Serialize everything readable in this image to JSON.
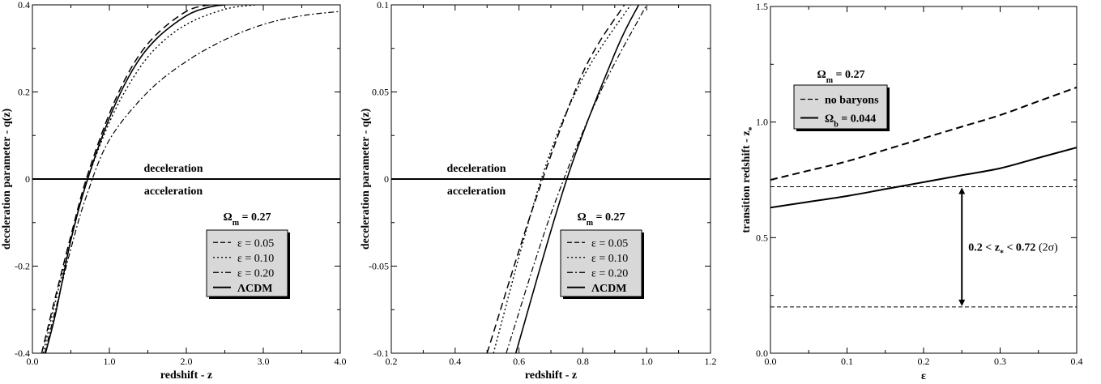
{
  "chart_data": [
    {
      "type": "line",
      "xlabel": "redshift - z",
      "ylabel": "deceleration parameter - q(z)",
      "xlim": [
        0.0,
        4.0
      ],
      "ylim": [
        -0.4,
        0.4
      ],
      "xticks": [
        0.0,
        1.0,
        2.0,
        3.0,
        4.0
      ],
      "xtick_labels": [
        "0.0",
        "1.0",
        "2.0",
        "3.0",
        "4.0"
      ],
      "yticks": [
        -0.4,
        -0.2,
        0.0,
        0.2,
        0.4
      ],
      "ytick_labels": [
        "-0.4",
        "-0.2",
        "0",
        "0.2",
        "0.4"
      ],
      "hline": 0,
      "annotations": [
        "deceleration",
        "acceleration"
      ],
      "legend_title": "Ω_m = 0.27",
      "legend_placement": "bottom-right",
      "series": [
        {
          "name": "ε = 0.05",
          "style": "dashed",
          "x": [
            0.12,
            0.3,
            0.5,
            0.7,
            1.0,
            1.3,
            1.6,
            2.0,
            2.3,
            2.45
          ],
          "y": [
            -0.4,
            -0.27,
            -0.13,
            0.0,
            0.15,
            0.26,
            0.33,
            0.385,
            0.4,
            0.4
          ]
        },
        {
          "name": "ε = 0.10",
          "style": "dotted",
          "x": [
            0.14,
            0.3,
            0.5,
            0.7,
            1.0,
            1.3,
            1.6,
            2.0,
            2.5,
            2.9
          ],
          "y": [
            -0.4,
            -0.28,
            -0.14,
            -0.01,
            0.13,
            0.23,
            0.3,
            0.355,
            0.39,
            0.4
          ]
        },
        {
          "name": "ε = 0.20",
          "style": "dashdot",
          "x": [
            0.16,
            0.3,
            0.5,
            0.7,
            1.0,
            1.5,
            2.0,
            2.5,
            3.0,
            3.5,
            4.0
          ],
          "y": [
            -0.4,
            -0.3,
            -0.16,
            -0.04,
            0.09,
            0.2,
            0.27,
            0.32,
            0.355,
            0.375,
            0.385
          ]
        },
        {
          "name": "ΛCDM",
          "style": "solid",
          "x": [
            0.17,
            0.3,
            0.5,
            0.7,
            1.0,
            1.3,
            1.6,
            2.0,
            2.3,
            2.5
          ],
          "y": [
            -0.4,
            -0.31,
            -0.14,
            -0.01,
            0.14,
            0.25,
            0.32,
            0.375,
            0.395,
            0.4
          ]
        }
      ]
    },
    {
      "type": "line",
      "xlabel": "redshift - z",
      "ylabel": "deceleration parameter - q(z)",
      "xlim": [
        0.2,
        1.2
      ],
      "ylim": [
        -0.1,
        0.1
      ],
      "xticks": [
        0.2,
        0.4,
        0.6,
        0.8,
        1.0,
        1.2
      ],
      "xtick_labels": [
        "0.2",
        "0.4",
        "0.6",
        "0.8",
        "1.0",
        "1.2"
      ],
      "yticks": [
        -0.1,
        -0.05,
        0.0,
        0.05,
        0.1
      ],
      "ytick_labels": [
        "-0.1",
        "-0.05",
        "0",
        "0.05",
        "0.1"
      ],
      "hline": 0,
      "annotations": [
        "deceleration",
        "acceleration"
      ],
      "legend_title": "Ω_m = 0.27",
      "legend_placement": "bottom-right",
      "series": [
        {
          "name": "ε = 0.05",
          "style": "dashed",
          "x": [
            0.5,
            0.65,
            0.8,
            0.93
          ],
          "y": [
            -0.1,
            -0.013,
            0.061,
            0.1
          ]
        },
        {
          "name": "ε = 0.10",
          "style": "dotted",
          "x": [
            0.52,
            0.67,
            0.8,
            0.95
          ],
          "y": [
            -0.1,
            0.0,
            0.058,
            0.1
          ]
        },
        {
          "name": "ε = 0.20",
          "style": "dashdot",
          "x": [
            0.56,
            0.7,
            0.85,
            1.0
          ],
          "y": [
            -0.1,
            -0.02,
            0.048,
            0.1
          ]
        },
        {
          "name": "ΛCDM",
          "style": "solid",
          "x": [
            0.59,
            0.75,
            0.9,
            0.975
          ],
          "y": [
            -0.1,
            0.0,
            0.072,
            0.1
          ]
        }
      ]
    },
    {
      "type": "line",
      "xlabel": "ε",
      "ylabel": "transition redshift - z*",
      "xlim": [
        0.0,
        0.4
      ],
      "ylim": [
        0.0,
        1.5
      ],
      "xticks": [
        0.0,
        0.1,
        0.2,
        0.3,
        0.4
      ],
      "xtick_labels": [
        "0.0",
        "0.1",
        "0.2",
        "0.3",
        "0.4"
      ],
      "yticks": [
        0.0,
        0.5,
        1.0,
        1.5
      ],
      "ytick_labels": [
        "0.0",
        "0.5",
        "1.0",
        "1.5"
      ],
      "hlines": [
        0.72,
        0.2
      ],
      "annotation": "0.2 < z* < 0.72 (2σ)",
      "legend_title": "Ω_m = 0.27",
      "legend_placement": "top-left",
      "series": [
        {
          "name": "no baryons",
          "style": "dashed",
          "x": [
            0.0,
            0.05,
            0.1,
            0.15,
            0.2,
            0.25,
            0.3,
            0.35,
            0.4
          ],
          "y": [
            0.75,
            0.79,
            0.83,
            0.88,
            0.93,
            0.98,
            1.03,
            1.09,
            1.15
          ]
        },
        {
          "name": "Ω_b = 0.044",
          "style": "solid",
          "x": [
            0.0,
            0.05,
            0.1,
            0.15,
            0.2,
            0.25,
            0.3,
            0.35,
            0.4
          ],
          "y": [
            0.63,
            0.655,
            0.68,
            0.71,
            0.74,
            0.77,
            0.8,
            0.845,
            0.89
          ]
        }
      ]
    }
  ]
}
